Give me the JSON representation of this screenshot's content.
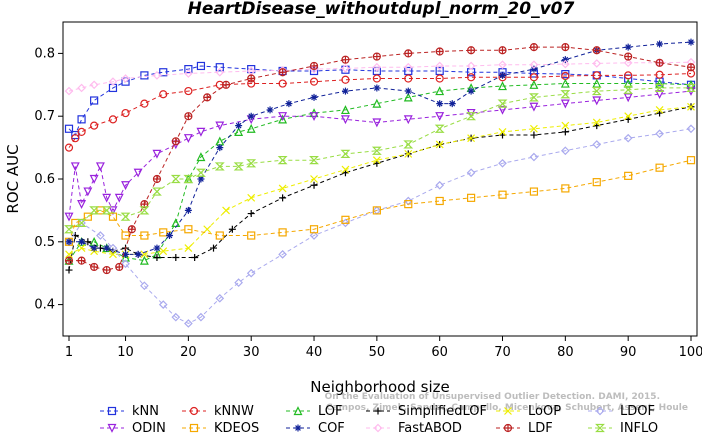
{
  "chart_data": {
    "type": "line",
    "title": "HeartDisease_withoutdupl_norm_20_v07",
    "xlabel": "Neighborhood size",
    "ylabel": "ROC AUC",
    "xlim": [
      1,
      100
    ],
    "ylim": [
      0.35,
      0.85
    ],
    "xticks": [
      1,
      10,
      20,
      30,
      40,
      50,
      60,
      70,
      80,
      90,
      100
    ],
    "yticks": [
      0.4,
      0.5,
      0.6,
      0.7,
      0.8
    ],
    "grid": false,
    "legend_position": "bottom",
    "watermark": [
      "Campos, Zimek, Sander, Campello, Micenkova, Schubert, Assent, Houle",
      "On the Evaluation of Unsupervised Outlier Detection. DAMI, 2015."
    ],
    "series": [
      {
        "name": "kNN",
        "color": "#2233dd",
        "marker": "square",
        "linestyle": "dashed",
        "x": [
          1,
          2,
          3,
          5,
          8,
          10,
          13,
          16,
          20,
          22,
          25,
          30,
          35,
          40,
          45,
          50,
          55,
          60,
          65,
          70,
          75,
          80,
          85,
          90,
          95,
          100
        ],
        "y": [
          0.68,
          0.67,
          0.695,
          0.725,
          0.745,
          0.755,
          0.765,
          0.77,
          0.775,
          0.78,
          0.778,
          0.775,
          0.772,
          0.772,
          0.774,
          0.772,
          0.772,
          0.772,
          0.77,
          0.77,
          0.768,
          0.767,
          0.765,
          0.76,
          0.755,
          0.75
        ]
      },
      {
        "name": "kNNW",
        "color": "#dd2222",
        "marker": "circle",
        "linestyle": "dashed",
        "x": [
          1,
          2,
          3,
          5,
          8,
          10,
          13,
          16,
          20,
          25,
          30,
          35,
          40,
          45,
          50,
          55,
          60,
          65,
          70,
          75,
          80,
          85,
          90,
          95,
          100
        ],
        "y": [
          0.65,
          0.665,
          0.675,
          0.685,
          0.695,
          0.705,
          0.72,
          0.735,
          0.74,
          0.75,
          0.752,
          0.752,
          0.755,
          0.758,
          0.76,
          0.76,
          0.76,
          0.762,
          0.762,
          0.762,
          0.764,
          0.765,
          0.765,
          0.766,
          0.768
        ]
      },
      {
        "name": "LOF",
        "color": "#22bb22",
        "marker": "triangle-up",
        "linestyle": "dashed",
        "x": [
          1,
          3,
          5,
          7,
          10,
          13,
          15,
          18,
          20,
          22,
          25,
          28,
          30,
          35,
          40,
          45,
          50,
          55,
          60,
          65,
          70,
          75,
          80,
          85,
          90,
          95,
          100
        ],
        "y": [
          0.47,
          0.5,
          0.5,
          0.49,
          0.475,
          0.47,
          0.48,
          0.53,
          0.6,
          0.635,
          0.66,
          0.675,
          0.68,
          0.695,
          0.705,
          0.71,
          0.72,
          0.73,
          0.74,
          0.745,
          0.748,
          0.75,
          0.752,
          0.752,
          0.752,
          0.752,
          0.75
        ]
      },
      {
        "name": "SimplifiedLOF",
        "color": "#000000",
        "marker": "plus",
        "linestyle": "dashed",
        "x": [
          1,
          2,
          4,
          6,
          8,
          10,
          12,
          15,
          18,
          21,
          24,
          27,
          30,
          35,
          40,
          45,
          50,
          55,
          60,
          65,
          70,
          75,
          80,
          85,
          90,
          95,
          100
        ],
        "y": [
          0.455,
          0.51,
          0.5,
          0.49,
          0.485,
          0.49,
          0.48,
          0.475,
          0.475,
          0.475,
          0.49,
          0.52,
          0.545,
          0.57,
          0.59,
          0.61,
          0.625,
          0.64,
          0.655,
          0.665,
          0.67,
          0.67,
          0.675,
          0.685,
          0.695,
          0.705,
          0.715
        ]
      },
      {
        "name": "LoOP",
        "color": "#eeee00",
        "marker": "cross",
        "linestyle": "dashed",
        "x": [
          1,
          3,
          5,
          8,
          10,
          13,
          16,
          20,
          23,
          26,
          30,
          35,
          40,
          45,
          50,
          55,
          60,
          65,
          70,
          75,
          80,
          85,
          90,
          95,
          100
        ],
        "y": [
          0.48,
          0.49,
          0.485,
          0.48,
          0.48,
          0.48,
          0.485,
          0.49,
          0.52,
          0.55,
          0.57,
          0.585,
          0.6,
          0.615,
          0.63,
          0.64,
          0.655,
          0.665,
          0.675,
          0.68,
          0.685,
          0.69,
          0.7,
          0.71,
          0.715
        ]
      },
      {
        "name": "LDOF",
        "color": "#aaaaee",
        "marker": "diamond",
        "linestyle": "dashed",
        "x": [
          1,
          3,
          6,
          8,
          10,
          13,
          16,
          18,
          20,
          22,
          25,
          28,
          30,
          35,
          40,
          45,
          50,
          55,
          60,
          65,
          70,
          75,
          80,
          85,
          90,
          95,
          100
        ],
        "y": [
          0.5,
          0.53,
          0.51,
          0.49,
          0.465,
          0.43,
          0.4,
          0.38,
          0.37,
          0.38,
          0.41,
          0.435,
          0.45,
          0.48,
          0.51,
          0.53,
          0.55,
          0.565,
          0.59,
          0.61,
          0.625,
          0.635,
          0.645,
          0.655,
          0.665,
          0.672,
          0.68
        ]
      },
      {
        "name": "ODIN",
        "color": "#9922dd",
        "marker": "triangle-down",
        "linestyle": "dashed",
        "x": [
          1,
          2,
          3,
          4,
          5,
          6,
          7,
          8,
          9,
          10,
          12,
          15,
          18,
          20,
          22,
          25,
          30,
          35,
          40,
          45,
          50,
          55,
          60,
          65,
          70,
          75,
          80,
          85,
          90,
          95,
          100
        ],
        "y": [
          0.54,
          0.62,
          0.56,
          0.58,
          0.6,
          0.62,
          0.57,
          0.55,
          0.57,
          0.59,
          0.61,
          0.64,
          0.655,
          0.665,
          0.675,
          0.685,
          0.695,
          0.7,
          0.7,
          0.695,
          0.69,
          0.695,
          0.7,
          0.705,
          0.71,
          0.715,
          0.72,
          0.725,
          0.73,
          0.735,
          0.74
        ]
      },
      {
        "name": "KDEOS",
        "color": "#f5a800",
        "marker": "square",
        "linestyle": "dashed",
        "x": [
          1,
          2,
          4,
          6,
          8,
          10,
          13,
          16,
          20,
          25,
          30,
          35,
          40,
          45,
          50,
          55,
          60,
          65,
          70,
          75,
          80,
          85,
          90,
          95,
          100
        ],
        "y": [
          0.5,
          0.53,
          0.54,
          0.55,
          0.54,
          0.51,
          0.51,
          0.515,
          0.52,
          0.51,
          0.51,
          0.515,
          0.52,
          0.535,
          0.55,
          0.56,
          0.565,
          0.57,
          0.575,
          0.58,
          0.585,
          0.595,
          0.605,
          0.618,
          0.63
        ]
      },
      {
        "name": "COF",
        "color": "#112299",
        "marker": "asterisk",
        "linestyle": "dashed",
        "x": [
          1,
          3,
          5,
          7,
          10,
          12,
          15,
          17,
          20,
          22,
          25,
          28,
          30,
          33,
          36,
          40,
          45,
          50,
          55,
          60,
          62,
          65,
          70,
          75,
          80,
          85,
          90,
          95,
          100
        ],
        "y": [
          0.5,
          0.5,
          0.49,
          0.49,
          0.48,
          0.48,
          0.49,
          0.51,
          0.55,
          0.6,
          0.65,
          0.685,
          0.7,
          0.71,
          0.72,
          0.73,
          0.74,
          0.745,
          0.74,
          0.72,
          0.72,
          0.74,
          0.765,
          0.775,
          0.79,
          0.805,
          0.81,
          0.815,
          0.818
        ]
      },
      {
        "name": "FastABOD",
        "color": "#ffbbee",
        "marker": "diamond",
        "linestyle": "dashed",
        "x": [
          1,
          3,
          5,
          8,
          10,
          15,
          20,
          25,
          30,
          35,
          40,
          45,
          50,
          55,
          60,
          65,
          70,
          75,
          80,
          85,
          90,
          95,
          100
        ],
        "y": [
          0.74,
          0.745,
          0.75,
          0.755,
          0.76,
          0.765,
          0.768,
          0.77,
          0.772,
          0.773,
          0.775,
          0.776,
          0.778,
          0.778,
          0.78,
          0.78,
          0.782,
          0.782,
          0.783,
          0.784,
          0.785,
          0.785,
          0.786
        ]
      },
      {
        "name": "LDF",
        "color": "#bb2222",
        "marker": "circle-plus",
        "linestyle": "dashed",
        "x": [
          1,
          3,
          5,
          7,
          9,
          11,
          13,
          15,
          18,
          20,
          23,
          26,
          30,
          35,
          40,
          45,
          50,
          55,
          60,
          65,
          70,
          75,
          80,
          85,
          90,
          95,
          100
        ],
        "y": [
          0.47,
          0.47,
          0.46,
          0.455,
          0.46,
          0.52,
          0.56,
          0.6,
          0.66,
          0.7,
          0.73,
          0.75,
          0.76,
          0.77,
          0.78,
          0.79,
          0.795,
          0.8,
          0.803,
          0.805,
          0.805,
          0.81,
          0.81,
          0.805,
          0.795,
          0.785,
          0.778
        ]
      },
      {
        "name": "INFLO",
        "color": "#99dd44",
        "marker": "hourglass",
        "linestyle": "dashed",
        "x": [
          1,
          3,
          5,
          7,
          10,
          13,
          15,
          18,
          20,
          22,
          25,
          28,
          30,
          35,
          40,
          45,
          50,
          55,
          60,
          65,
          70,
          75,
          80,
          85,
          90,
          95,
          100
        ],
        "y": [
          0.52,
          0.53,
          0.55,
          0.55,
          0.54,
          0.55,
          0.58,
          0.6,
          0.6,
          0.61,
          0.62,
          0.62,
          0.625,
          0.63,
          0.63,
          0.64,
          0.645,
          0.655,
          0.68,
          0.7,
          0.72,
          0.73,
          0.735,
          0.74,
          0.742,
          0.745,
          0.745
        ]
      }
    ]
  }
}
